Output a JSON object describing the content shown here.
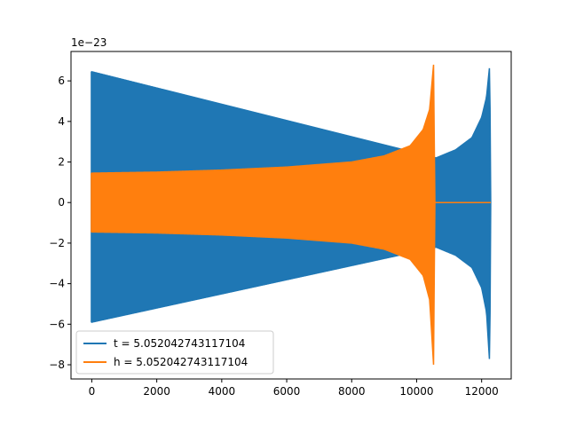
{
  "chart_data": {
    "type": "line",
    "xlim": [
      -640,
      12910
    ],
    "ylim": [
      -8.7,
      7.45
    ],
    "y_scale_label": "1e−23",
    "x_ticks": [
      0,
      2000,
      4000,
      6000,
      8000,
      10000,
      12000
    ],
    "x_tick_labels": [
      "0",
      "2000",
      "4000",
      "6000",
      "8000",
      "10000",
      "12000"
    ],
    "y_ticks": [
      -8,
      -6,
      -4,
      -2,
      0,
      2,
      4,
      6
    ],
    "y_tick_labels": [
      "−8",
      "−6",
      "−4",
      "−2",
      "0",
      "2",
      "4",
      "6"
    ],
    "grid": false,
    "legend_position": "lower-left",
    "series": [
      {
        "name": "t = 5.052042743117104",
        "color": "#1f77b4",
        "envelope": [
          [
            0,
            6.45,
            -5.9
          ],
          [
            10600,
            2.2,
            -2.2
          ],
          [
            11200,
            2.6,
            -2.6
          ],
          [
            11700,
            3.2,
            -3.2
          ],
          [
            12000,
            4.2,
            -4.2
          ],
          [
            12150,
            5.2,
            -5.4
          ],
          [
            12250,
            6.8,
            -8.0
          ],
          [
            12280,
            0,
            0
          ]
        ]
      },
      {
        "name": "h = 5.052042743117104",
        "color": "#ff7f0e",
        "envelope": [
          [
            0,
            1.45,
            -1.45
          ],
          [
            2000,
            1.5,
            -1.5
          ],
          [
            4000,
            1.6,
            -1.6
          ],
          [
            6000,
            1.75,
            -1.75
          ],
          [
            8000,
            2.0,
            -2.0
          ],
          [
            9000,
            2.3,
            -2.3
          ],
          [
            9800,
            2.8,
            -2.8
          ],
          [
            10200,
            3.6,
            -3.6
          ],
          [
            10400,
            4.6,
            -4.8
          ],
          [
            10520,
            6.8,
            -8.0
          ],
          [
            10560,
            0,
            0
          ],
          [
            12280,
            0,
            0
          ]
        ]
      }
    ]
  }
}
